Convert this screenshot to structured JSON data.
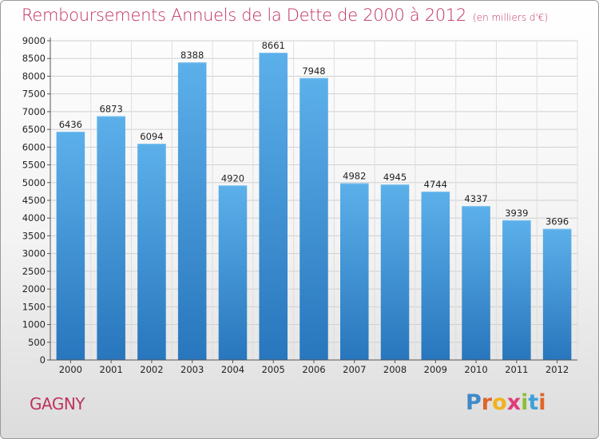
{
  "chart_data": {
    "type": "bar",
    "title": "Remboursements Annuels de la Dette de 2000 à 2012",
    "subtitle": "(en milliers d'€)",
    "categories": [
      "2000",
      "2001",
      "2002",
      "2003",
      "2004",
      "2005",
      "2006",
      "2007",
      "2008",
      "2009",
      "2010",
      "2011",
      "2012"
    ],
    "values": [
      6436,
      6873,
      6094,
      8388,
      4920,
      8661,
      7948,
      4982,
      4945,
      4744,
      4337,
      3939,
      3696
    ],
    "ylim": [
      0,
      9000
    ],
    "yticks": [
      0,
      500,
      1000,
      1500,
      2000,
      2500,
      3000,
      3500,
      4000,
      4500,
      5000,
      5500,
      6000,
      6500,
      7000,
      7500,
      8000,
      8500,
      9000
    ],
    "grid": true,
    "bar_color": "#3a8fd6",
    "legend": "none"
  },
  "footer": {
    "city": "GAGNY",
    "logo_text": "Proxiti"
  },
  "colors": {
    "title": "#c0325e",
    "bar_top": "#5aaee8",
    "bar_bottom": "#2a78bf"
  }
}
